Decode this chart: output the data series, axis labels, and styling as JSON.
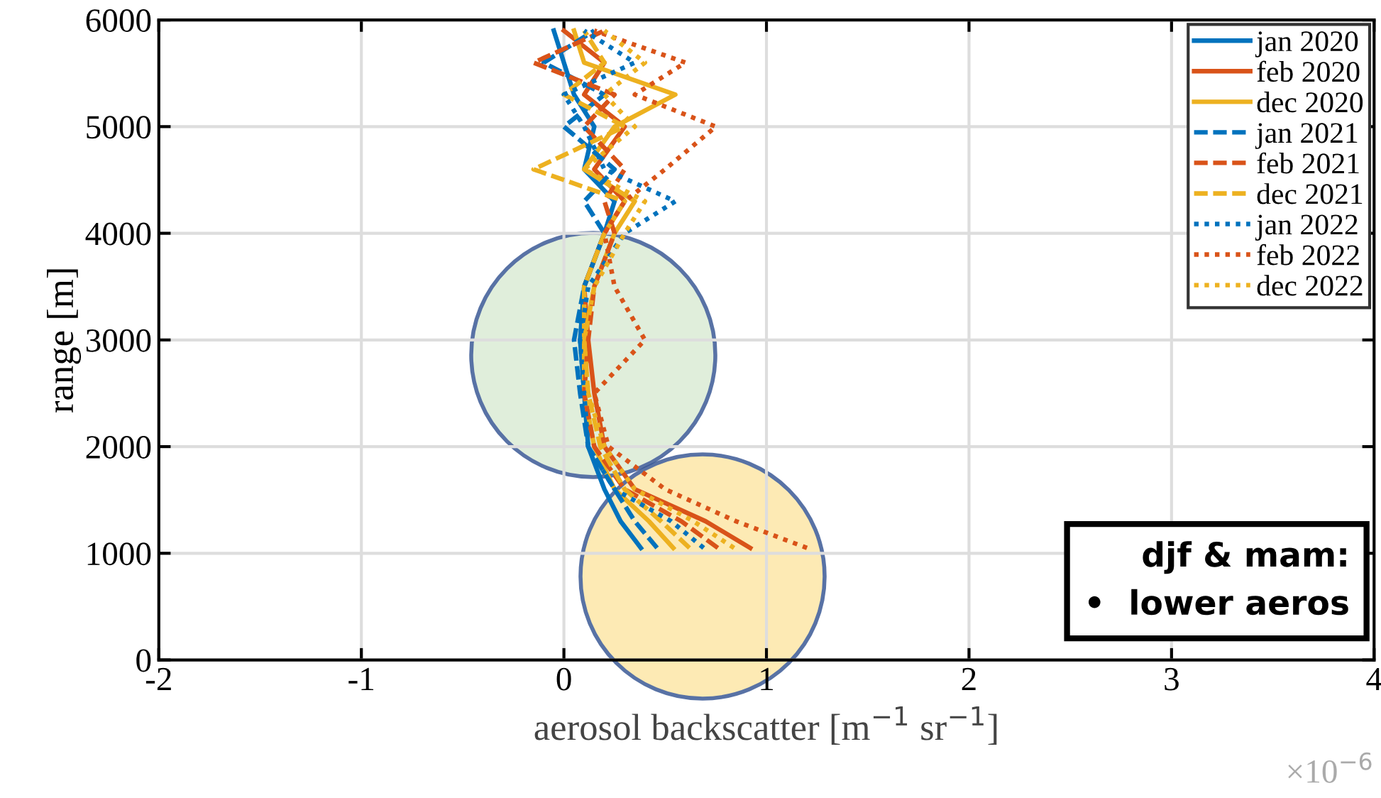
{
  "chart_data": {
    "type": "line",
    "xlabel": "aerosol backscatter [m$^{−1}$ sr$^{−1}$]",
    "ylabel": "range [m]",
    "xlim": [
      -2,
      4
    ],
    "xticks": [
      -2,
      -1,
      0,
      1,
      2,
      3,
      4
    ],
    "ylim": [
      0,
      6000
    ],
    "yticks": [
      0,
      1000,
      2000,
      3000,
      4000,
      5000,
      6000
    ],
    "grid": true,
    "legend": "top right",
    "series": [
      {
        "name": "jan 2020",
        "color": "#0072bd",
        "line_style": "solid",
        "x": [
          0.38,
          0.28,
          0.2,
          0.12,
          0.1,
          0.08,
          0.1,
          0.2,
          0.25,
          0.1,
          0.15,
          0.05,
          0.0,
          -0.05
        ],
        "values": [
          1050,
          1300,
          1600,
          2000,
          2500,
          3000,
          3500,
          4000,
          4300,
          4600,
          5000,
          5300,
          5600,
          5900
        ]
      },
      {
        "name": "feb 2020",
        "color": "#d95319",
        "line_style": "solid",
        "x": [
          0.92,
          0.7,
          0.35,
          0.2,
          0.15,
          0.12,
          0.1,
          0.2,
          0.3,
          0.15,
          0.3,
          0.1,
          0.2,
          0.0
        ],
        "values": [
          1050,
          1300,
          1600,
          2000,
          2500,
          3000,
          3500,
          4000,
          4300,
          4600,
          5000,
          5300,
          5600,
          5900
        ]
      },
      {
        "name": "dec 2020",
        "color": "#edb120",
        "line_style": "solid",
        "x": [
          0.54,
          0.42,
          0.25,
          0.15,
          0.1,
          0.1,
          0.15,
          0.25,
          0.35,
          0.1,
          0.25,
          0.55,
          0.1,
          0.05
        ],
        "values": [
          1050,
          1300,
          1600,
          2000,
          2500,
          3000,
          3500,
          4000,
          4300,
          4600,
          5000,
          5300,
          5600,
          5900
        ]
      },
      {
        "name": "jan 2021",
        "color": "#0072bd",
        "line_style": "dashed",
        "x": [
          0.46,
          0.35,
          0.25,
          0.12,
          0.08,
          0.05,
          0.1,
          0.2,
          0.1,
          0.25,
          0.0,
          0.2,
          -0.1,
          0.15
        ],
        "values": [
          1050,
          1300,
          1600,
          2000,
          2500,
          3000,
          3500,
          4000,
          4300,
          4600,
          5000,
          5300,
          5600,
          5900
        ]
      },
      {
        "name": "feb 2021",
        "color": "#d95319",
        "line_style": "dashed",
        "x": [
          0.76,
          0.58,
          0.3,
          0.15,
          0.1,
          0.12,
          0.15,
          0.25,
          0.2,
          0.3,
          0.1,
          0.25,
          -0.15,
          0.2
        ],
        "values": [
          1050,
          1300,
          1600,
          2000,
          2500,
          3000,
          3500,
          4000,
          4300,
          4600,
          5000,
          5300,
          5600,
          5900
        ]
      },
      {
        "name": "dec 2021",
        "color": "#edb120",
        "line_style": "dashed",
        "x": [
          0.62,
          0.48,
          0.3,
          0.18,
          0.12,
          0.1,
          0.1,
          0.2,
          0.3,
          -0.15,
          0.3,
          0.0,
          0.2,
          0.1
        ],
        "values": [
          1050,
          1300,
          1600,
          2000,
          2500,
          3000,
          3500,
          4000,
          4300,
          4600,
          5000,
          5300,
          5600,
          5900
        ]
      },
      {
        "name": "jan 2022",
        "color": "#0072bd",
        "line_style": "dotted",
        "x": [
          0.69,
          0.53,
          0.25,
          0.12,
          0.1,
          0.08,
          0.12,
          0.3,
          0.55,
          0.2,
          0.1,
          0.0,
          0.35,
          0.1
        ],
        "values": [
          1050,
          1300,
          1600,
          2000,
          2500,
          3000,
          3500,
          4000,
          4300,
          4600,
          5000,
          5300,
          5600,
          5900
        ]
      },
      {
        "name": "feb 2022",
        "color": "#d95319",
        "line_style": "dotted",
        "x": [
          1.2,
          0.85,
          0.5,
          0.22,
          0.15,
          0.4,
          0.25,
          0.2,
          0.3,
          0.5,
          0.75,
          0.35,
          0.6,
          0.15
        ],
        "values": [
          1050,
          1300,
          1600,
          2000,
          2500,
          3000,
          3500,
          4000,
          4300,
          4600,
          5000,
          5300,
          5600,
          5900
        ]
      },
      {
        "name": "dec 2022",
        "color": "#edb120",
        "line_style": "dotted",
        "x": [
          0.84,
          0.64,
          0.35,
          0.2,
          0.12,
          0.1,
          0.15,
          0.3,
          0.4,
          0.1,
          0.35,
          0.2,
          0.4,
          0.2
        ],
        "values": [
          1050,
          1300,
          1600,
          2000,
          2500,
          3000,
          3500,
          4000,
          4300,
          4600,
          5000,
          5300,
          5600,
          5900
        ]
      }
    ],
    "annotations": [
      "×10$^{−6}$",
      "djf & mam:\n•  lower aeros"
    ]
  }
}
